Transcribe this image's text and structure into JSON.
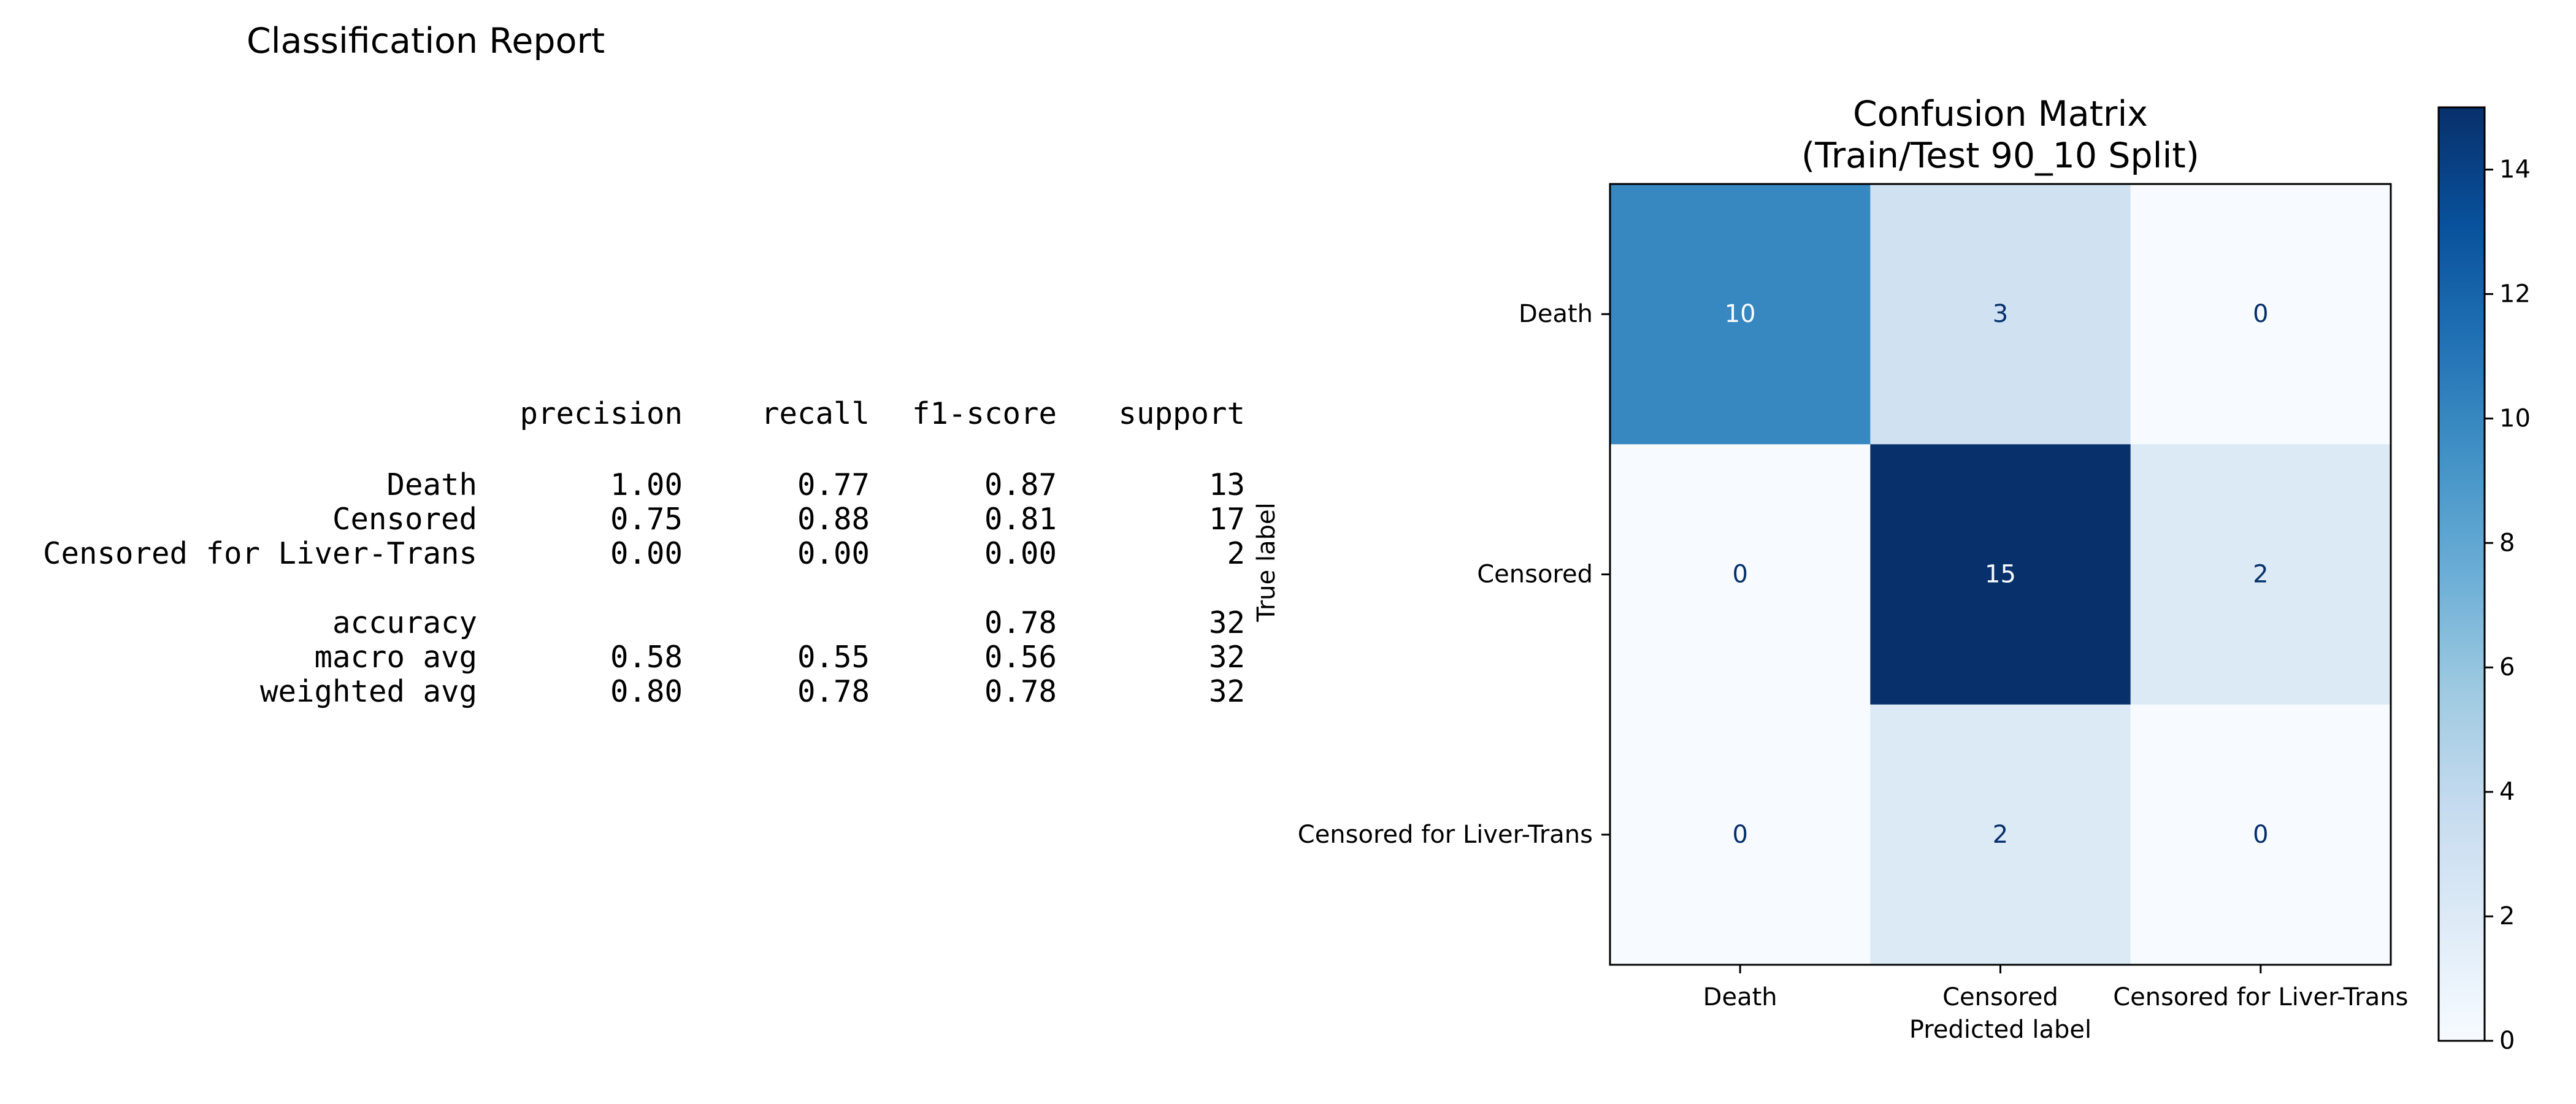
{
  "report": {
    "title": "Classification Report",
    "headers": [
      "precision",
      "recall",
      "f1-score",
      "support"
    ],
    "rows": [
      {
        "label": "Death",
        "values": [
          "1.00",
          "0.77",
          "0.87",
          "13"
        ]
      },
      {
        "label": "Censored",
        "values": [
          "0.75",
          "0.88",
          "0.81",
          "17"
        ]
      },
      {
        "label": "Censored for Liver-Trans",
        "values": [
          "0.00",
          "0.00",
          "0.00",
          "2"
        ]
      },
      {
        "label": "accuracy",
        "values": [
          "",
          "",
          "0.78",
          "32"
        ]
      },
      {
        "label": "macro avg",
        "values": [
          "0.58",
          "0.55",
          "0.56",
          "32"
        ]
      },
      {
        "label": "weighted avg",
        "values": [
          "0.80",
          "0.78",
          "0.78",
          "32"
        ]
      }
    ]
  },
  "chart_data": {
    "type": "heatmap",
    "title": "Confusion Matrix\n(Train/Test 90_10 Split)",
    "title_lines": [
      "Confusion Matrix",
      "(Train/Test 90_10 Split)"
    ],
    "xlabel": "Predicted label",
    "ylabel": "True label",
    "x_categories": [
      "Death",
      "Censored",
      "Censored for Liver-Trans"
    ],
    "y_categories": [
      "Death",
      "Censored",
      "Censored for Liver-Trans"
    ],
    "matrix": [
      [
        10,
        3,
        0
      ],
      [
        0,
        15,
        2
      ],
      [
        0,
        2,
        0
      ]
    ],
    "colormap": "Blues",
    "colorbar": {
      "min": 0,
      "max": 15,
      "ticks": [
        0,
        2,
        4,
        6,
        8,
        10,
        12,
        14
      ]
    },
    "grid": false,
    "colors": {
      "low": "#f7fbff",
      "high": "#08306b",
      "text_dark": "#08306b",
      "text_light": "#f7fbff"
    }
  }
}
